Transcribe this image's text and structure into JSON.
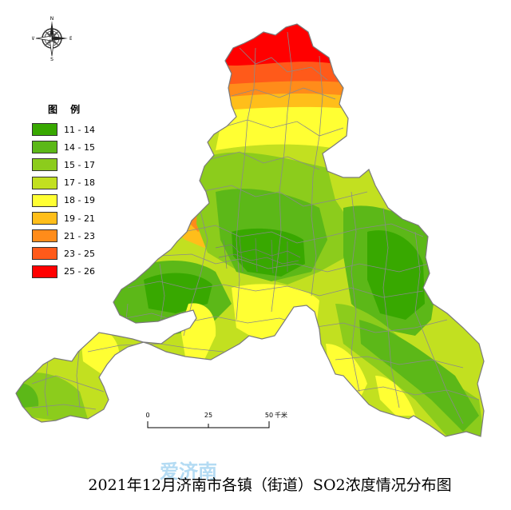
{
  "title": "2021年12月济南市各镇（街道）SO2浓度情况分布图",
  "legend": {
    "title": "图 例",
    "items": [
      {
        "label": "11 - 14",
        "color": "#38a800"
      },
      {
        "label": "14 - 15",
        "color": "#5cb818"
      },
      {
        "label": "15 - 17",
        "color": "#8ccc1c"
      },
      {
        "label": "17 - 18",
        "color": "#c2e020"
      },
      {
        "label": "18 - 19",
        "color": "#ffff33"
      },
      {
        "label": "19 - 21",
        "color": "#ffbe1a"
      },
      {
        "label": "21 - 23",
        "color": "#ff8c1a"
      },
      {
        "label": "23 - 25",
        "color": "#ff5a1a"
      },
      {
        "label": "25 - 26",
        "color": "#ff0000"
      }
    ]
  },
  "compass": {
    "n": "N",
    "s": "S",
    "e": "E",
    "w": "W"
  },
  "scale_bar": {
    "ticks": [
      "0",
      "25",
      "50"
    ],
    "unit": "千米"
  },
  "watermark": "爱济南"
}
